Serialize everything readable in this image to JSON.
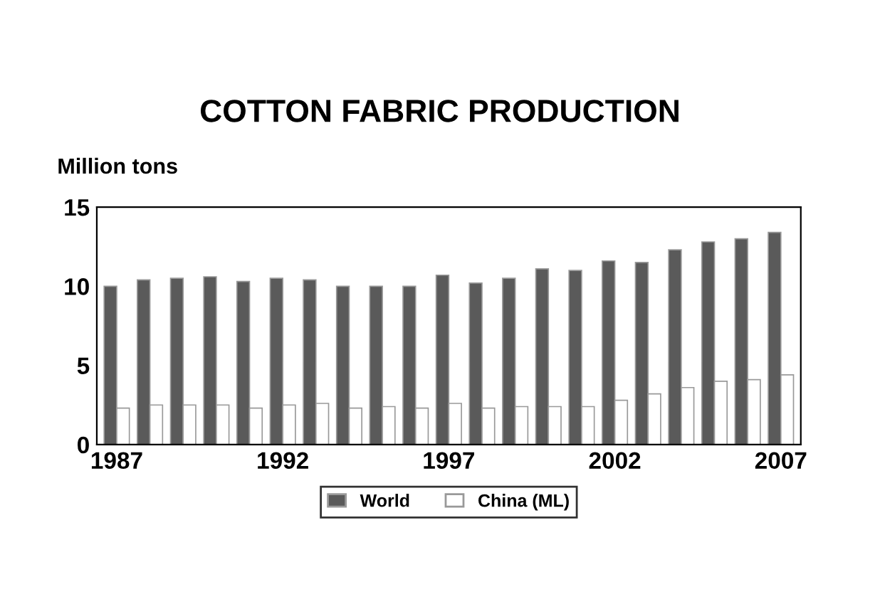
{
  "chart_data": {
    "type": "bar",
    "title": "COTTON FABRIC PRODUCTION",
    "ylabel": "Million tons",
    "categories": [
      "1987",
      null,
      null,
      null,
      null,
      "1992",
      null,
      null,
      null,
      null,
      "1997",
      null,
      null,
      null,
      null,
      "2002",
      null,
      null,
      null,
      null,
      "2007"
    ],
    "series": [
      {
        "name": "World",
        "color": "#5a5a5a",
        "values": [
          10.0,
          10.4,
          10.5,
          10.6,
          10.3,
          10.5,
          10.4,
          10.0,
          10.0,
          10.0,
          10.7,
          10.2,
          10.5,
          11.1,
          11.0,
          11.6,
          11.5,
          12.3,
          12.8,
          13.0,
          13.4
        ]
      },
      {
        "name": "China (ML)",
        "color": "#ffffff",
        "values": [
          2.3,
          2.5,
          2.5,
          2.5,
          2.3,
          2.5,
          2.6,
          2.3,
          2.4,
          2.3,
          2.6,
          2.3,
          2.4,
          2.4,
          2.4,
          2.8,
          3.2,
          3.6,
          4.0,
          4.1,
          4.4
        ]
      }
    ],
    "ylim": [
      0,
      15
    ],
    "yticks": [
      0,
      5,
      10,
      15
    ],
    "legend": "bottom"
  }
}
